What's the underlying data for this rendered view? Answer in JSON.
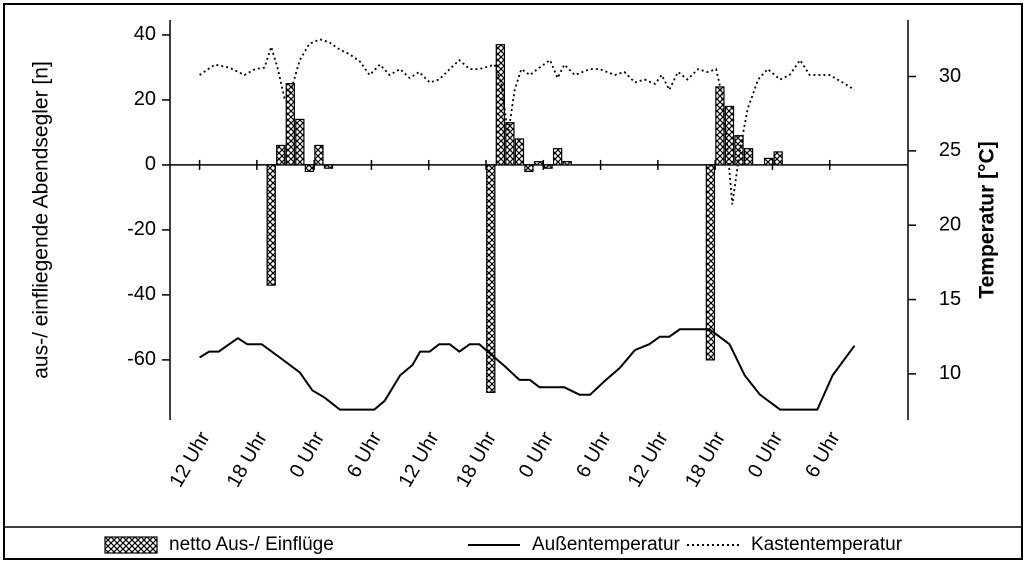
{
  "chart_data": {
    "type": "bar",
    "y_label": "aus-/ einfliegende Abendsegler [n]",
    "y2_label": "Temperatur [°C]",
    "xlim": [
      -3.1,
      74.2
    ],
    "xticks": [
      {
        "value": 0,
        "label": "12 Uhr"
      },
      {
        "value": 6,
        "label": "18 Uhr"
      },
      {
        "value": 12,
        "label": "0 Uhr"
      },
      {
        "value": 18,
        "label": "6 Uhr"
      },
      {
        "value": 24,
        "label": "12 Uhr"
      },
      {
        "value": 30,
        "label": "18 Uhr"
      },
      {
        "value": 36,
        "label": "0 Uhr"
      },
      {
        "value": 42,
        "label": "6 Uhr"
      },
      {
        "value": 48,
        "label": "12 Uhr"
      },
      {
        "value": 54,
        "label": "18 Uhr"
      },
      {
        "value": 60,
        "label": "0 Uhr"
      },
      {
        "value": 66,
        "label": "6 Uhr"
      }
    ],
    "ylim": [
      -78.5,
      44.6
    ],
    "yticks": [
      40,
      20,
      0,
      -20,
      -40,
      -60
    ],
    "y2lim": [
      6.9,
      33.8
    ],
    "y2ticks": [
      10,
      15,
      20,
      25,
      30
    ],
    "series": [
      {
        "name": "netto Aus-/ Einflüge",
        "type": "bar",
        "color": "#000000",
        "x": [
          7.5,
          8.5,
          9.5,
          10.5,
          11.5,
          12.5,
          13.5,
          30.5,
          31.5,
          32.5,
          33.5,
          34.5,
          35.5,
          36.5,
          37.5,
          38.5,
          53.5,
          54.5,
          55.5,
          56.5,
          57.5,
          59.6,
          60.6
        ],
        "values": [
          -37,
          6,
          25,
          14,
          -2,
          6,
          -1,
          -70,
          37,
          13,
          8,
          -2,
          1,
          -1,
          5,
          1,
          -60,
          24,
          18,
          9,
          5,
          2,
          4
        ]
      },
      {
        "name": "Außentemperatur",
        "type": "line",
        "axis": "y2",
        "color": "#000000",
        "dash": "solid",
        "x": [
          0,
          1,
          2,
          4,
          5,
          6.5,
          8.4,
          10.5,
          11.8,
          13.1,
          14.7,
          16.2,
          18.3,
          19.4,
          21,
          22.3,
          23.1,
          24.1,
          25.1,
          26.2,
          27.2,
          28.3,
          29.3,
          30.9,
          32,
          33.5,
          34.6,
          35.6,
          37.2,
          38.2,
          39.8,
          40.9,
          42.4,
          44,
          45.6,
          47.1,
          48.2,
          49.2,
          50.3,
          51.9,
          53.4,
          55.5,
          57.1,
          58.7,
          60.8,
          62.9,
          64.7,
          66.3,
          68.6
        ],
        "values": [
          11.1,
          11.5,
          11.5,
          12.4,
          12.0,
          12.0,
          11.1,
          10.1,
          8.9,
          8.4,
          7.6,
          7.6,
          7.6,
          8.2,
          9.9,
          10.6,
          11.5,
          11.5,
          12.0,
          12.0,
          11.5,
          12.0,
          12.0,
          11.1,
          10.5,
          9.6,
          9.6,
          9.1,
          9.1,
          9.1,
          8.6,
          8.6,
          9.5,
          10.4,
          11.6,
          12.0,
          12.5,
          12.5,
          13.0,
          13.0,
          13.0,
          12.0,
          9.9,
          8.6,
          7.6,
          7.6,
          7.6,
          9.9,
          11.9
        ]
      },
      {
        "name": "Kastentemperatur",
        "type": "line",
        "axis": "y2",
        "color": "#000000",
        "dash": "dotted",
        "x": [
          0,
          1.6,
          3.1,
          4.7,
          5.8,
          6.8,
          7.5,
          8.2,
          8.9,
          9.6,
          10.5,
          11.5,
          12.6,
          13.6,
          14.7,
          15.7,
          16.8,
          17.8,
          18.9,
          19.9,
          21,
          22,
          23,
          24.1,
          25.1,
          26.2,
          27.2,
          28.3,
          29.3,
          30.9,
          31.6,
          32.3,
          33,
          33.7,
          34.6,
          35.6,
          36.7,
          37.5,
          38.2,
          39.3,
          40.9,
          41.9,
          43.5,
          44.5,
          45.6,
          46.6,
          47.7,
          48.4,
          49.2,
          50.1,
          51.1,
          52.2,
          53.2,
          54.1,
          54.7,
          55.3,
          55.8,
          56.6,
          57.4,
          58.5,
          59.5,
          60.8,
          61.8,
          62.9,
          63.9,
          65,
          66,
          67.6,
          68.6
        ],
        "values": [
          30.1,
          30.8,
          30.6,
          30.1,
          30.5,
          30.6,
          32.0,
          30.5,
          28.5,
          29.1,
          31.1,
          32.2,
          32.5,
          32.3,
          31.8,
          31.5,
          31.0,
          30.1,
          30.8,
          30.1,
          30.5,
          29.9,
          30.3,
          29.6,
          29.8,
          30.5,
          31.1,
          30.5,
          30.5,
          30.8,
          29.5,
          26.1,
          29.1,
          30.5,
          30.1,
          30.6,
          31.1,
          29.9,
          30.8,
          30.1,
          30.5,
          30.5,
          30.1,
          30.3,
          29.6,
          29.8,
          29.5,
          30.1,
          29.1,
          30.3,
          29.8,
          30.5,
          30.3,
          30.5,
          28.8,
          25.1,
          21.4,
          25.1,
          27.8,
          29.8,
          30.5,
          29.8,
          30.1,
          31.1,
          30.1,
          30.1,
          30.1,
          29.5,
          29.1
        ]
      }
    ]
  }
}
